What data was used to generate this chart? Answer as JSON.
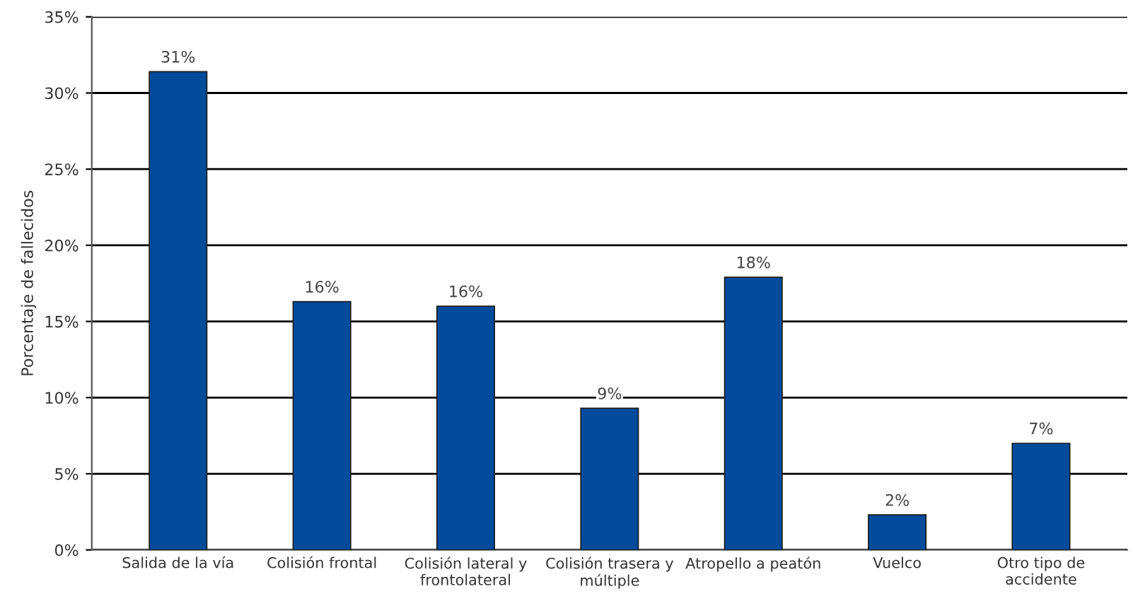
{
  "chart_data": {
    "type": "bar",
    "ylabel": "Porcentaje de fallecidos",
    "categories": [
      "Salida de la vía",
      "Colisión frontal",
      "Colisión lateral y\nfrontolateral",
      "Colisión trasera y\nmúltiple",
      "Atropello a peatón",
      "Vuelco",
      "Otro tipo de\naccidente"
    ],
    "values": [
      31.4,
      16.3,
      16.0,
      9.3,
      17.9,
      2.3,
      7.0
    ],
    "value_labels": [
      "31%",
      "16%",
      "16%",
      "9%",
      "18%",
      "2%",
      "7%"
    ],
    "color": "#004b9b",
    "ylim": [
      0,
      35
    ],
    "yticks": [
      {
        "value": 0,
        "label": "0%"
      },
      {
        "value": 5,
        "label": "5%"
      },
      {
        "value": 10,
        "label": "10%"
      },
      {
        "value": 15,
        "label": "15%"
      },
      {
        "value": 20,
        "label": "20%"
      },
      {
        "value": 25,
        "label": "25%"
      },
      {
        "value": 30,
        "label": "30%"
      },
      {
        "value": 35,
        "label": "35%"
      }
    ],
    "grid": "y"
  }
}
